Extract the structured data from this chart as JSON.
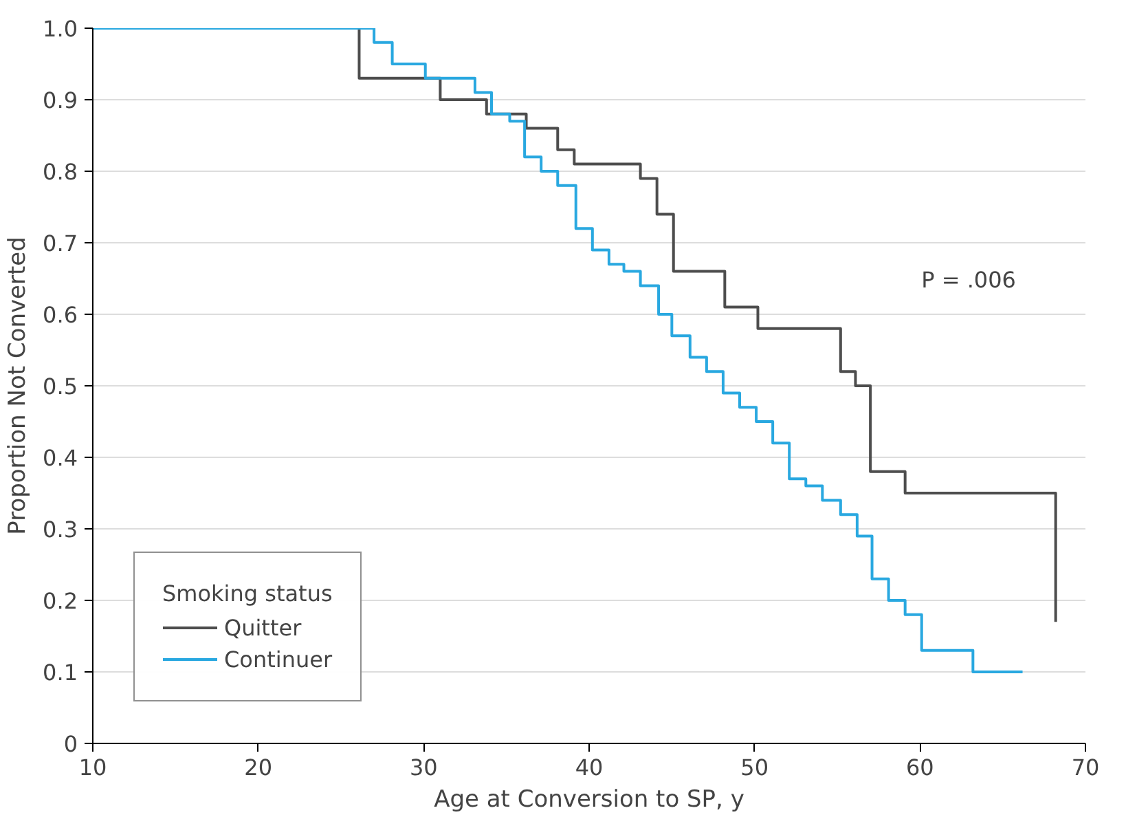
{
  "chart_data": {
    "type": "step",
    "xlabel": "Age at Conversion to SP, y",
    "ylabel": "Proportion Not Converted",
    "legend_title": "Smoking status",
    "legend": "bottom left",
    "grid": "y",
    "xlim": [
      10,
      70
    ],
    "xticks": [
      10,
      20,
      30,
      40,
      50,
      60,
      70
    ],
    "ylim": [
      0,
      1.0
    ],
    "yticks": [
      0,
      0.1,
      0.2,
      0.3,
      0.4,
      0.5,
      0.6,
      0.7,
      0.8,
      0.9,
      {
        "value": 1.0,
        "label": "1.0"
      }
    ],
    "annotations": [
      "P = .006"
    ],
    "series": [
      {
        "name": "Quitter",
        "color": "#4d4d4d",
        "x": [
          10,
          26.1,
          31.0,
          33.8,
          36.2,
          38.1,
          39.1,
          43.1,
          44.1,
          45.1,
          48.2,
          50.2,
          55.2,
          56.1,
          57.0,
          59.1,
          68.2
        ],
        "values": [
          1.0,
          0.93,
          0.9,
          0.88,
          0.86,
          0.83,
          0.81,
          0.79,
          0.74,
          0.66,
          0.61,
          0.58,
          0.52,
          0.5,
          0.38,
          0.35,
          0.17
        ]
      },
      {
        "name": "Continuer",
        "color": "#29a8e0",
        "x": [
          10,
          27.0,
          28.1,
          30.1,
          33.1,
          34.1,
          35.2,
          36.1,
          37.1,
          38.1,
          39.2,
          40.2,
          41.2,
          42.1,
          43.1,
          44.2,
          45.0,
          46.1,
          47.1,
          48.1,
          49.1,
          50.1,
          51.1,
          52.1,
          53.1,
          54.1,
          55.2,
          56.2,
          57.1,
          58.1,
          59.1,
          60.1,
          63.2,
          66.2
        ],
        "values": [
          1.0,
          0.98,
          0.95,
          0.93,
          0.91,
          0.88,
          0.87,
          0.82,
          0.8,
          0.78,
          0.72,
          0.69,
          0.67,
          0.66,
          0.64,
          0.6,
          0.57,
          0.54,
          0.52,
          0.49,
          0.47,
          0.45,
          0.42,
          0.37,
          0.36,
          0.34,
          0.32,
          0.29,
          0.23,
          0.2,
          0.18,
          0.13,
          0.1,
          0.1
        ]
      }
    ]
  }
}
